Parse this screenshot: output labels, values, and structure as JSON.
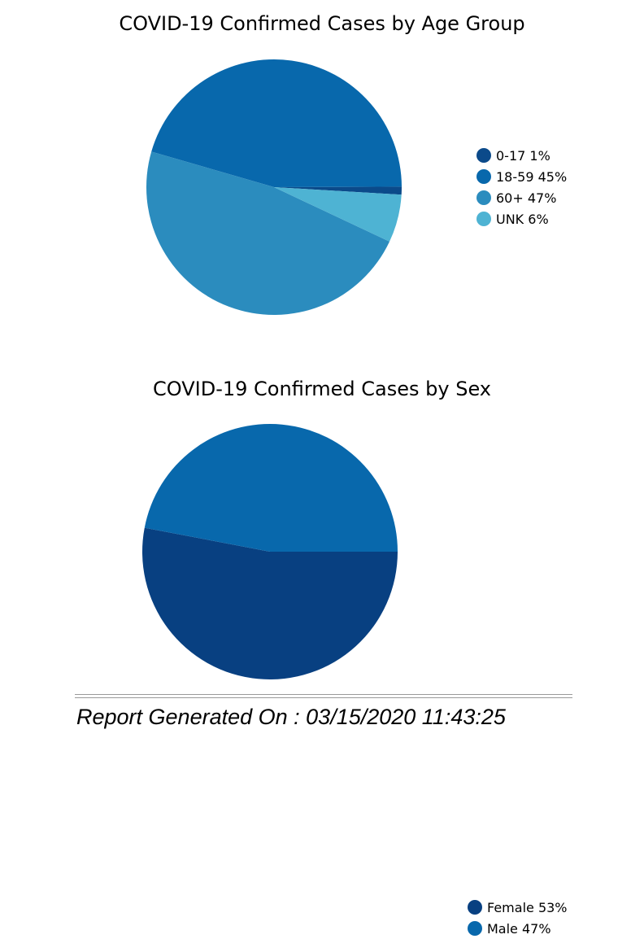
{
  "chart_data": [
    {
      "type": "pie",
      "title": "COVID-19 Confirmed Cases by Age Group",
      "legend_position": "right",
      "slices": [
        {
          "label": "0-17 1%",
          "category": "0-17",
          "value": 1,
          "color": "#0b4a8a"
        },
        {
          "label": "18-59 45%",
          "category": "18-59",
          "value": 45,
          "color": "#0868ac"
        },
        {
          "label": "60+ 47%",
          "category": "60+",
          "value": 47,
          "color": "#2b8cbe"
        },
        {
          "label": "UNK 6%",
          "category": "UNK",
          "value": 6,
          "color": "#4eb3d3"
        }
      ]
    },
    {
      "type": "pie",
      "title": "COVID-19 Confirmed Cases by Sex",
      "legend_position": "right",
      "slices": [
        {
          "label": "Female 53%",
          "category": "Female",
          "value": 53,
          "color": "#084081"
        },
        {
          "label": "Male 47%",
          "category": "Male",
          "value": 47,
          "color": "#0868ac"
        }
      ]
    }
  ],
  "footer": {
    "text": "Report Generated On : 03/15/2020 11:43:25"
  }
}
